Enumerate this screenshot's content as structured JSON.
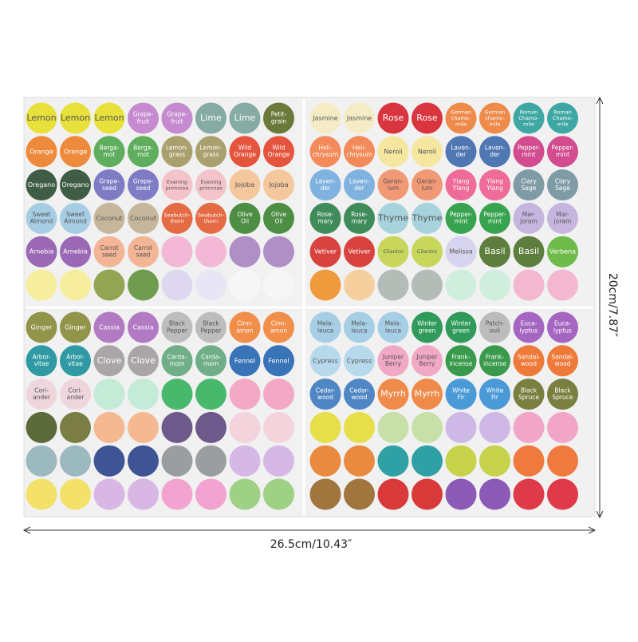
{
  "dimensions": {
    "height": "20cm/7.87″",
    "width": "26.5cm/10.43″"
  },
  "quadrants": [
    {
      "rows": [
        [
          {
            "t": [
              "Lemon"
            ],
            "c": "#e9e13b"
          },
          {
            "t": [
              "Lemon"
            ],
            "c": "#e9e13b"
          },
          {
            "t": [
              "Lemon"
            ],
            "c": "#e9e13b"
          },
          {
            "t": [
              "Grape-",
              "fruit"
            ],
            "c": "#c58ad0"
          },
          {
            "t": [
              "Grape-",
              "fruit"
            ],
            "c": "#c58ad0"
          },
          {
            "t": [
              "Lime"
            ],
            "c": "#86aaa4"
          },
          {
            "t": [
              "Lime"
            ],
            "c": "#86aaa4"
          },
          {
            "t": [
              "Petit-",
              "grain"
            ],
            "c": "#6a7a3a"
          }
        ],
        [
          {
            "t": [
              "Orange"
            ],
            "c": "#ee8a3c"
          },
          {
            "t": [
              "Orange"
            ],
            "c": "#ee8a3c"
          },
          {
            "t": [
              "Berga-",
              "mot"
            ],
            "c": "#5fae5e"
          },
          {
            "t": [
              "Berga-",
              "mot"
            ],
            "c": "#5fae5e"
          },
          {
            "t": [
              "Lemon-",
              "grass"
            ],
            "c": "#a9a06e"
          },
          {
            "t": [
              "Lemon-",
              "grass"
            ],
            "c": "#a9a06e"
          },
          {
            "t": [
              "Wild",
              "Orange"
            ],
            "c": "#e5553e"
          },
          {
            "t": [
              "Wild",
              "Orange"
            ],
            "c": "#e5553e"
          }
        ],
        [
          {
            "t": [
              "Oregano"
            ],
            "c": "#3f5c44"
          },
          {
            "t": [
              "Oregano"
            ],
            "c": "#3f5c44"
          },
          {
            "t": [
              "Grape-",
              "seed"
            ],
            "c": "#7f7bc4"
          },
          {
            "t": [
              "Grape-",
              "seed"
            ],
            "c": "#7f7bc4"
          },
          {
            "t": [
              "Evening",
              "primrose"
            ],
            "c": "#f3c3c9"
          },
          {
            "t": [
              "Evening",
              "primrose"
            ],
            "c": "#f3c3c9"
          },
          {
            "t": [
              "Jojoba"
            ],
            "c": "#f4c79c"
          },
          {
            "t": [
              "Jojoba"
            ],
            "c": "#f4c79c"
          }
        ],
        [
          {
            "t": [
              "Sweet",
              "Almond"
            ],
            "c": "#a6cde4"
          },
          {
            "t": [
              "Sweet",
              "Almond"
            ],
            "c": "#a6cde4"
          },
          {
            "t": [
              "Coconut"
            ],
            "c": "#c6b79c"
          },
          {
            "t": [
              "Coconut"
            ],
            "c": "#c6b79c"
          },
          {
            "t": [
              "Seabutch-",
              "thorn"
            ],
            "c": "#e56b45"
          },
          {
            "t": [
              "Seabutch-",
              "thorn"
            ],
            "c": "#e56b45"
          },
          {
            "t": [
              "Olive",
              "Oil"
            ],
            "c": "#4d8d44"
          },
          {
            "t": [
              "Olive",
              "Oil"
            ],
            "c": "#4d8d44"
          }
        ],
        [
          {
            "t": [
              "Arnebia"
            ],
            "c": "#9a68b4"
          },
          {
            "t": [
              "Arnebia"
            ],
            "c": "#9a68b4"
          },
          {
            "t": [
              "Carrot",
              "seed"
            ],
            "c": "#f3b596"
          },
          {
            "t": [
              "Carrot",
              "seed"
            ],
            "c": "#f3b596"
          },
          {
            "c": "#f2b8d5"
          },
          {
            "c": "#f2b8d5"
          },
          {
            "c": "#b08fc7"
          },
          {
            "c": "#b08fc7"
          }
        ],
        [
          {
            "c": "#f6ee9c"
          },
          {
            "c": "#f6ee9c"
          },
          {
            "c": "#93a452"
          },
          {
            "c": "#6f9c4f"
          },
          {
            "c": "#ddd8ef"
          },
          {
            "c": "#e8e6f4"
          },
          {
            "c": "#f6f6f6"
          },
          {
            "c": "#f6f6f6"
          }
        ]
      ]
    },
    {
      "rows": [
        [
          {
            "t": [
              "Jasmine"
            ],
            "c": "#f5ecc6"
          },
          {
            "t": [
              "Jasmine"
            ],
            "c": "#f5ecc6"
          },
          {
            "t": [
              "Rose"
            ],
            "c": "#d9353f"
          },
          {
            "t": [
              "Rose"
            ],
            "c": "#d9353f"
          },
          {
            "t": [
              "German",
              "chamo-",
              "mile"
            ],
            "c": "#ee8a4a"
          },
          {
            "t": [
              "German",
              "chamo-",
              "mile"
            ],
            "c": "#ee8a4a"
          },
          {
            "t": [
              "Roman",
              "Chamo-",
              "mile"
            ],
            "c": "#3fa7a3"
          },
          {
            "t": [
              "Roman",
              "Chamo-",
              "mile"
            ],
            "c": "#3fa7a3"
          }
        ],
        [
          {
            "t": [
              "Heli-",
              "chrysum"
            ],
            "c": "#f28a5a"
          },
          {
            "t": [
              "Heli-",
              "chrysum"
            ],
            "c": "#f28a5a"
          },
          {
            "t": [
              "Neroli"
            ],
            "c": "#f6e7a0"
          },
          {
            "t": [
              "Neroli"
            ],
            "c": "#f6e7a0"
          },
          {
            "t": [
              "Laven-",
              "der"
            ],
            "c": "#4f77b2"
          },
          {
            "t": [
              "Laven-",
              "der"
            ],
            "c": "#4f77b2"
          },
          {
            "t": [
              "Pepper-",
              "mint"
            ],
            "c": "#d24c8f"
          },
          {
            "t": [
              "Pepper-",
              "mint"
            ],
            "c": "#d24c8f"
          }
        ],
        [
          {
            "t": [
              "Laven-",
              "der"
            ],
            "c": "#7fb2de"
          },
          {
            "t": [
              "Laven-",
              "der"
            ],
            "c": "#7fb2de"
          },
          {
            "t": [
              "Geran-",
              "ium"
            ],
            "c": "#f19874"
          },
          {
            "t": [
              "Geran-",
              "ium"
            ],
            "c": "#f19874"
          },
          {
            "t": [
              "Ylang",
              "Ylang"
            ],
            "c": "#ee6b9a"
          },
          {
            "t": [
              "Ylang",
              "Ylang"
            ],
            "c": "#ee6b9a"
          },
          {
            "t": [
              "Clary",
              "Sage"
            ],
            "c": "#7f9ba6"
          },
          {
            "t": [
              "Clary",
              "Sage"
            ],
            "c": "#7f9ba6"
          }
        ],
        [
          {
            "t": [
              "Rose-",
              "mary"
            ],
            "c": "#3f8b5a"
          },
          {
            "t": [
              "Rose-",
              "mary"
            ],
            "c": "#3f8b5a"
          },
          {
            "t": [
              "Thyme"
            ],
            "c": "#a8d3dc"
          },
          {
            "t": [
              "Thyme"
            ],
            "c": "#a8d3dc"
          },
          {
            "t": [
              "Pepper-",
              "mint"
            ],
            "c": "#37a34e"
          },
          {
            "t": [
              "Pepper-",
              "mint"
            ],
            "c": "#37a34e"
          },
          {
            "t": [
              "Mar-",
              "joram"
            ],
            "c": "#c6b6df"
          },
          {
            "t": [
              "Mar-",
              "joram"
            ],
            "c": "#c6b6df"
          }
        ],
        [
          {
            "t": [
              "Vetiver"
            ],
            "c": "#d8423f"
          },
          {
            "t": [
              "Vetiver"
            ],
            "c": "#d8423f"
          },
          {
            "t": [
              "Cilantro"
            ],
            "c": "#c8d65c"
          },
          {
            "t": [
              "Cilantro"
            ],
            "c": "#c8d65c"
          },
          {
            "t": [
              "Melissa"
            ],
            "c": "#d6d4ee"
          },
          {
            "t": [
              "Basil"
            ],
            "c": "#5e7e3e"
          },
          {
            "t": [
              "Basil"
            ],
            "c": "#5e7e3e"
          },
          {
            "t": [
              "Verbena"
            ],
            "c": "#6fbb4a"
          }
        ],
        [
          {
            "c": "#f09a3e"
          },
          {
            "c": "#f6cf9e"
          },
          {
            "c": "#b4bcb8"
          },
          {
            "c": "#b4bcb8"
          },
          {
            "c": "#cfeede"
          },
          {
            "c": "#cfeede"
          },
          {
            "c": "#f3b8cf"
          },
          {
            "c": "#f3b8cf"
          }
        ]
      ]
    },
    {
      "rows": [
        [
          {
            "t": [
              "Ginger"
            ],
            "c": "#92944a"
          },
          {
            "t": [
              "Ginger"
            ],
            "c": "#92944a"
          },
          {
            "t": [
              "Cassia"
            ],
            "c": "#b27ac3"
          },
          {
            "t": [
              "Cassia"
            ],
            "c": "#b27ac3"
          },
          {
            "t": [
              "Black",
              "Pepper"
            ],
            "c": "#bdbdbd"
          },
          {
            "t": [
              "Black",
              "Pepper"
            ],
            "c": "#bdbdbd"
          },
          {
            "t": [
              "Cinn-",
              "amon"
            ],
            "c": "#f08e4a"
          },
          {
            "t": [
              "Cinn-",
              "amon"
            ],
            "c": "#f08e4a"
          }
        ],
        [
          {
            "t": [
              "Arbor-",
              "vitae"
            ],
            "c": "#2f9aa4"
          },
          {
            "t": [
              "Arbor-",
              "vitae"
            ],
            "c": "#2f9aa4"
          },
          {
            "t": [
              "Clove"
            ],
            "c": "#a9a5a8"
          },
          {
            "t": [
              "Clove"
            ],
            "c": "#a9a5a8"
          },
          {
            "t": [
              "Carda-",
              "mom"
            ],
            "c": "#6fae86"
          },
          {
            "t": [
              "Carda-",
              "mom"
            ],
            "c": "#6fae86"
          },
          {
            "t": [
              "Fennel"
            ],
            "c": "#3a74b8"
          },
          {
            "t": [
              "Fennel"
            ],
            "c": "#3a74b8"
          }
        ],
        [
          {
            "t": [
              "Cori-",
              "ander"
            ],
            "c": "#efd6dc"
          },
          {
            "t": [
              "Cori-",
              "ander"
            ],
            "c": "#efd6dc"
          },
          {
            "c": "#c4ead8"
          },
          {
            "c": "#c4ead8"
          },
          {
            "c": "#48b86c"
          },
          {
            "c": "#48b86c"
          },
          {
            "c": "#f3a9c6"
          },
          {
            "c": "#f3a9c6"
          }
        ],
        [
          {
            "c": "#5c6a3a"
          },
          {
            "c": "#7a7e44"
          },
          {
            "c": "#f4b990"
          },
          {
            "c": "#f4b990"
          },
          {
            "c": "#6e5a8a"
          },
          {
            "c": "#6e5a8a"
          },
          {
            "c": "#f4d4dc"
          },
          {
            "c": "#f4d4dc"
          }
        ],
        [
          {
            "c": "#9cb9bf"
          },
          {
            "c": "#9cb9bf"
          },
          {
            "c": "#3f5494"
          },
          {
            "c": "#3f5494"
          },
          {
            "c": "#9a9ea0"
          },
          {
            "c": "#9a9ea0"
          },
          {
            "c": "#d6b8e6"
          },
          {
            "c": "#d6b8e6"
          }
        ],
        [
          {
            "c": "#f3e16a"
          },
          {
            "c": "#f3e16a"
          },
          {
            "c": "#d8b7e4"
          },
          {
            "c": "#d8b7e4"
          },
          {
            "c": "#f2a3cf"
          },
          {
            "c": "#f2a3cf"
          },
          {
            "c": "#9ed183"
          },
          {
            "c": "#9ed183"
          }
        ]
      ]
    },
    {
      "rows": [
        [
          {
            "t": [
              "Mela-",
              "leuca"
            ],
            "c": "#a6cfe6"
          },
          {
            "t": [
              "Mela-",
              "leuca"
            ],
            "c": "#a6cfe6"
          },
          {
            "t": [
              "Mela-",
              "leuca"
            ],
            "c": "#a6cfe6"
          },
          {
            "t": [
              "Winter",
              "green"
            ],
            "c": "#2f9a5a"
          },
          {
            "t": [
              "Winter",
              "green"
            ],
            "c": "#2f9a5a"
          },
          {
            "t": [
              "Patch-",
              "ouli"
            ],
            "c": "#bcbcbc"
          },
          {
            "t": [
              "Euca-",
              "lyptus"
            ],
            "c": "#a566c2"
          },
          {
            "t": [
              "Euca-",
              "lyptus"
            ],
            "c": "#a566c2"
          }
        ],
        [
          {
            "t": [
              "Cypress"
            ],
            "c": "#b7d9ec"
          },
          {
            "t": [
              "Cypress"
            ],
            "c": "#b7d9ec"
          },
          {
            "t": [
              "Juniper",
              "Berry"
            ],
            "c": "#f1a8c4"
          },
          {
            "t": [
              "Juniper",
              "Berry"
            ],
            "c": "#f1a8c4"
          },
          {
            "t": [
              "Frank-",
              "incense"
            ],
            "c": "#3a9a4c"
          },
          {
            "t": [
              "Frank-",
              "incense"
            ],
            "c": "#3a9a4c"
          },
          {
            "t": [
              "Sandal-",
              "wood"
            ],
            "c": "#ee7a3a"
          },
          {
            "t": [
              "Sandal-",
              "wood"
            ],
            "c": "#ee7a3a"
          }
        ],
        [
          {
            "t": [
              "Cedar-",
              "wood"
            ],
            "c": "#4f86c4"
          },
          {
            "t": [
              "Cedar-",
              "wood"
            ],
            "c": "#4f86c4"
          },
          {
            "t": [
              "Myrrh"
            ],
            "c": "#f08a4a"
          },
          {
            "t": [
              "Myrrh"
            ],
            "c": "#f08a4a"
          },
          {
            "t": [
              "White",
              "Fir"
            ],
            "c": "#4a9ad8"
          },
          {
            "t": [
              "White",
              "Fir"
            ],
            "c": "#4a9ad8"
          },
          {
            "t": [
              "Black",
              "Spruce"
            ],
            "c": "#7a7e3e"
          },
          {
            "t": [
              "Black",
              "Spruce"
            ],
            "c": "#7a7e3e"
          }
        ],
        [
          {
            "c": "#e6df4a"
          },
          {
            "c": "#e6df4a"
          },
          {
            "c": "#c6e0a8"
          },
          {
            "c": "#c6e0a8"
          },
          {
            "c": "#cdb8e6"
          },
          {
            "c": "#cdb8e6"
          },
          {
            "c": "#f1a6c8"
          },
          {
            "c": "#f1a6c8"
          }
        ],
        [
          {
            "c": "#e98a3e"
          },
          {
            "c": "#e98a3e"
          },
          {
            "c": "#2fa0a4"
          },
          {
            "c": "#2fa0a4"
          },
          {
            "c": "#c6d24a"
          },
          {
            "c": "#c6d24a"
          },
          {
            "c": "#f07a3e"
          },
          {
            "c": "#f07a3e"
          }
        ],
        [
          {
            "c": "#a0763e"
          },
          {
            "c": "#a0763e"
          },
          {
            "c": "#d83a3a"
          },
          {
            "c": "#d83a3a"
          },
          {
            "c": "#8a5ab6"
          },
          {
            "c": "#8a5ab6"
          },
          {
            "c": "#de3a4a"
          },
          {
            "c": "#de3a4a"
          }
        ]
      ]
    }
  ]
}
